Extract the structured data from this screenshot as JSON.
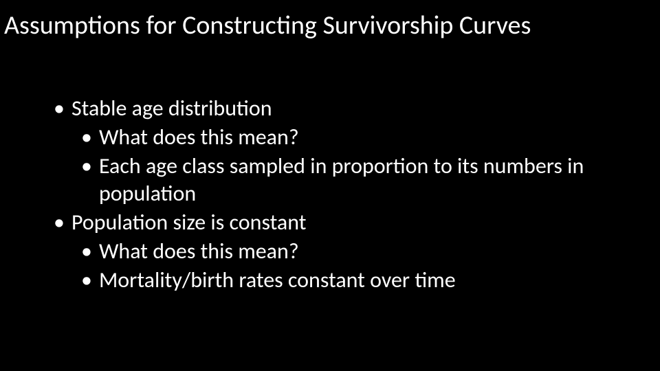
{
  "slide": {
    "title": "Assumptions for Constructing Survivorship Curves",
    "background_color": "#000000",
    "text_color": "#ffffff",
    "title_fontsize": 38,
    "body_fontsize": 32,
    "font_family": "Calibri",
    "bullets": [
      {
        "level": 1,
        "text": "Stable age distribution"
      },
      {
        "level": 2,
        "text": "What does this mean?"
      },
      {
        "level": 2,
        "text": "Each age class sampled in proportion to its numbers in population"
      },
      {
        "level": 1,
        "text": "Population size is constant"
      },
      {
        "level": 2,
        "text": "What does this mean?"
      },
      {
        "level": 2,
        "text": "Mortality/birth rates constant over time"
      }
    ],
    "bullet_marker": "•"
  }
}
